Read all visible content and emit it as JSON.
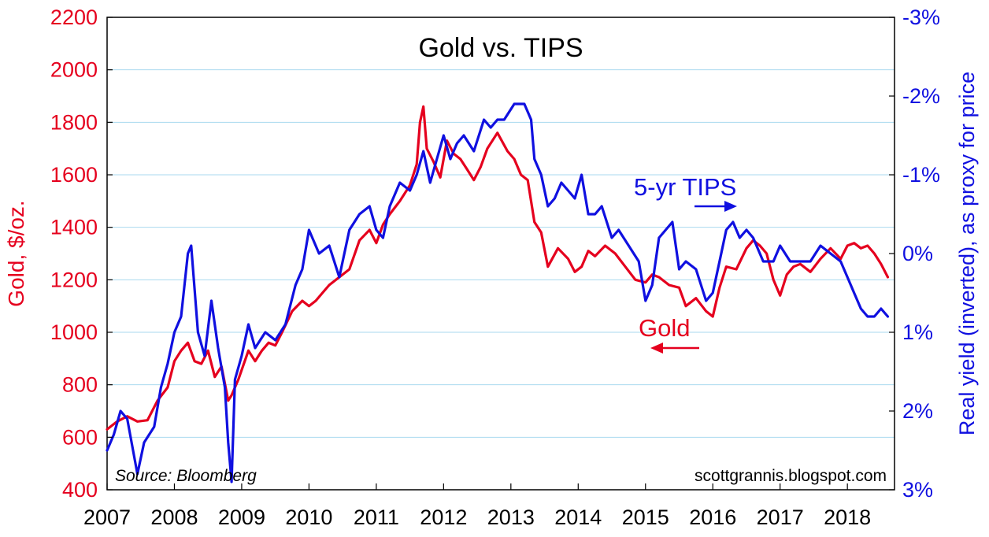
{
  "chart_data": {
    "type": "line",
    "title": "Gold vs. TIPS",
    "ylabel_left": "Gold, $/oz.",
    "ylabel_right": "Real yield (inverted), as proxy for price",
    "source": "Source: Bloomberg",
    "credit": "scottgrannis.blogspot.com",
    "x_ticks": [
      "2007",
      "2008",
      "2009",
      "2010",
      "2011",
      "2012",
      "2013",
      "2014",
      "2015",
      "2016",
      "2017",
      "2018"
    ],
    "y_left_ticks": [
      "2200",
      "2000",
      "1800",
      "1600",
      "1400",
      "1200",
      "1000",
      "800",
      "600",
      "400"
    ],
    "y_right_ticks": [
      "-3%",
      "-2%",
      "-1%",
      "0%",
      "1%",
      "2%",
      "3%"
    ],
    "ylim_left": [
      400,
      2200
    ],
    "ylim_right_inverted": [
      3,
      -3
    ],
    "xlim": [
      2007.0,
      2018.7
    ],
    "grid": true,
    "colors": {
      "gold": "#e5001e",
      "tips": "#1010e0"
    },
    "annotations": {
      "tips": {
        "text": "5-yr TIPS",
        "arrow": "right"
      },
      "gold": {
        "text": "Gold",
        "arrow": "left"
      }
    },
    "series": [
      {
        "name": "Gold",
        "axis": "left",
        "x": [
          2007.0,
          2007.15,
          2007.3,
          2007.45,
          2007.6,
          2007.75,
          2007.9,
          2008.0,
          2008.1,
          2008.2,
          2008.3,
          2008.4,
          2008.5,
          2008.6,
          2008.7,
          2008.8,
          2008.85,
          2008.95,
          2009.1,
          2009.2,
          2009.3,
          2009.4,
          2009.5,
          2009.6,
          2009.75,
          2009.9,
          2010.0,
          2010.1,
          2010.2,
          2010.3,
          2010.45,
          2010.6,
          2010.75,
          2010.9,
          2011.0,
          2011.1,
          2011.2,
          2011.35,
          2011.5,
          2011.6,
          2011.65,
          2011.7,
          2011.75,
          2011.85,
          2011.95,
          2012.05,
          2012.15,
          2012.25,
          2012.35,
          2012.45,
          2012.55,
          2012.65,
          2012.8,
          2012.95,
          2013.05,
          2013.15,
          2013.25,
          2013.35,
          2013.45,
          2013.55,
          2013.7,
          2013.85,
          2013.95,
          2014.05,
          2014.15,
          2014.25,
          2014.4,
          2014.55,
          2014.7,
          2014.85,
          2015.0,
          2015.1,
          2015.2,
          2015.35,
          2015.5,
          2015.6,
          2015.75,
          2015.9,
          2016.0,
          2016.1,
          2016.2,
          2016.35,
          2016.5,
          2016.6,
          2016.7,
          2016.8,
          2016.9,
          2017.0,
          2017.1,
          2017.2,
          2017.3,
          2017.45,
          2017.6,
          2017.75,
          2017.9,
          2018.0,
          2018.1,
          2018.2,
          2018.3,
          2018.4,
          2018.5,
          2018.6
        ],
        "values": [
          630,
          660,
          680,
          660,
          665,
          740,
          790,
          890,
          930,
          960,
          890,
          880,
          930,
          830,
          870,
          740,
          760,
          820,
          930,
          890,
          930,
          960,
          950,
          1000,
          1080,
          1120,
          1100,
          1120,
          1150,
          1180,
          1210,
          1240,
          1350,
          1390,
          1340,
          1410,
          1450,
          1500,
          1560,
          1640,
          1800,
          1860,
          1700,
          1650,
          1590,
          1730,
          1680,
          1660,
          1620,
          1580,
          1630,
          1700,
          1760,
          1690,
          1660,
          1600,
          1580,
          1420,
          1380,
          1250,
          1320,
          1280,
          1230,
          1250,
          1310,
          1290,
          1330,
          1300,
          1250,
          1200,
          1190,
          1220,
          1210,
          1180,
          1170,
          1100,
          1130,
          1080,
          1060,
          1170,
          1250,
          1240,
          1320,
          1350,
          1330,
          1300,
          1200,
          1140,
          1220,
          1250,
          1260,
          1230,
          1280,
          1320,
          1280,
          1330,
          1340,
          1320,
          1330,
          1300,
          1260,
          1210
        ]
      },
      {
        "name": "5-yr TIPS",
        "axis": "right",
        "x": [
          2007.0,
          2007.1,
          2007.2,
          2007.3,
          2007.45,
          2007.55,
          2007.7,
          2007.8,
          2007.9,
          2008.0,
          2008.1,
          2008.2,
          2008.25,
          2008.35,
          2008.45,
          2008.55,
          2008.65,
          2008.75,
          2008.8,
          2008.85,
          2008.9,
          2009.0,
          2009.1,
          2009.2,
          2009.35,
          2009.5,
          2009.65,
          2009.8,
          2009.9,
          2010.0,
          2010.15,
          2010.3,
          2010.45,
          2010.6,
          2010.75,
          2010.9,
          2011.0,
          2011.1,
          2011.2,
          2011.35,
          2011.5,
          2011.6,
          2011.7,
          2011.8,
          2011.9,
          2012.0,
          2012.1,
          2012.2,
          2012.3,
          2012.45,
          2012.6,
          2012.7,
          2012.8,
          2012.9,
          2013.05,
          2013.2,
          2013.3,
          2013.35,
          2013.45,
          2013.55,
          2013.65,
          2013.75,
          2013.85,
          2013.95,
          2014.05,
          2014.15,
          2014.25,
          2014.35,
          2014.5,
          2014.6,
          2014.75,
          2014.9,
          2015.0,
          2015.1,
          2015.2,
          2015.3,
          2015.4,
          2015.5,
          2015.6,
          2015.75,
          2015.9,
          2016.0,
          2016.1,
          2016.2,
          2016.3,
          2016.4,
          2016.5,
          2016.6,
          2016.75,
          2016.9,
          2017.0,
          2017.15,
          2017.3,
          2017.45,
          2017.6,
          2017.75,
          2017.9,
          2018.0,
          2018.1,
          2018.2,
          2018.3,
          2018.4,
          2018.5,
          2018.6
        ],
        "values": [
          2.5,
          2.3,
          2.0,
          2.1,
          2.8,
          2.4,
          2.2,
          1.7,
          1.4,
          1.0,
          0.8,
          0.0,
          -0.1,
          1.0,
          1.3,
          0.6,
          1.2,
          1.7,
          2.4,
          2.9,
          1.6,
          1.3,
          0.9,
          1.2,
          1.0,
          1.1,
          0.9,
          0.4,
          0.2,
          -0.3,
          0.0,
          -0.1,
          0.3,
          -0.3,
          -0.5,
          -0.6,
          -0.3,
          -0.2,
          -0.6,
          -0.9,
          -0.8,
          -1.0,
          -1.3,
          -0.9,
          -1.2,
          -1.5,
          -1.2,
          -1.4,
          -1.5,
          -1.3,
          -1.7,
          -1.6,
          -1.7,
          -1.7,
          -1.9,
          -1.9,
          -1.7,
          -1.2,
          -1.0,
          -0.6,
          -0.7,
          -0.9,
          -0.8,
          -0.7,
          -1.0,
          -0.5,
          -0.5,
          -0.6,
          -0.2,
          -0.3,
          -0.1,
          0.1,
          0.6,
          0.4,
          -0.2,
          -0.3,
          -0.4,
          0.2,
          0.1,
          0.2,
          0.6,
          0.5,
          0.1,
          -0.3,
          -0.4,
          -0.2,
          -0.3,
          -0.2,
          0.1,
          0.1,
          -0.1,
          0.1,
          0.1,
          0.1,
          -0.1,
          0.0,
          0.1,
          0.3,
          0.5,
          0.7,
          0.8,
          0.8,
          0.7,
          0.8
        ]
      }
    ]
  }
}
